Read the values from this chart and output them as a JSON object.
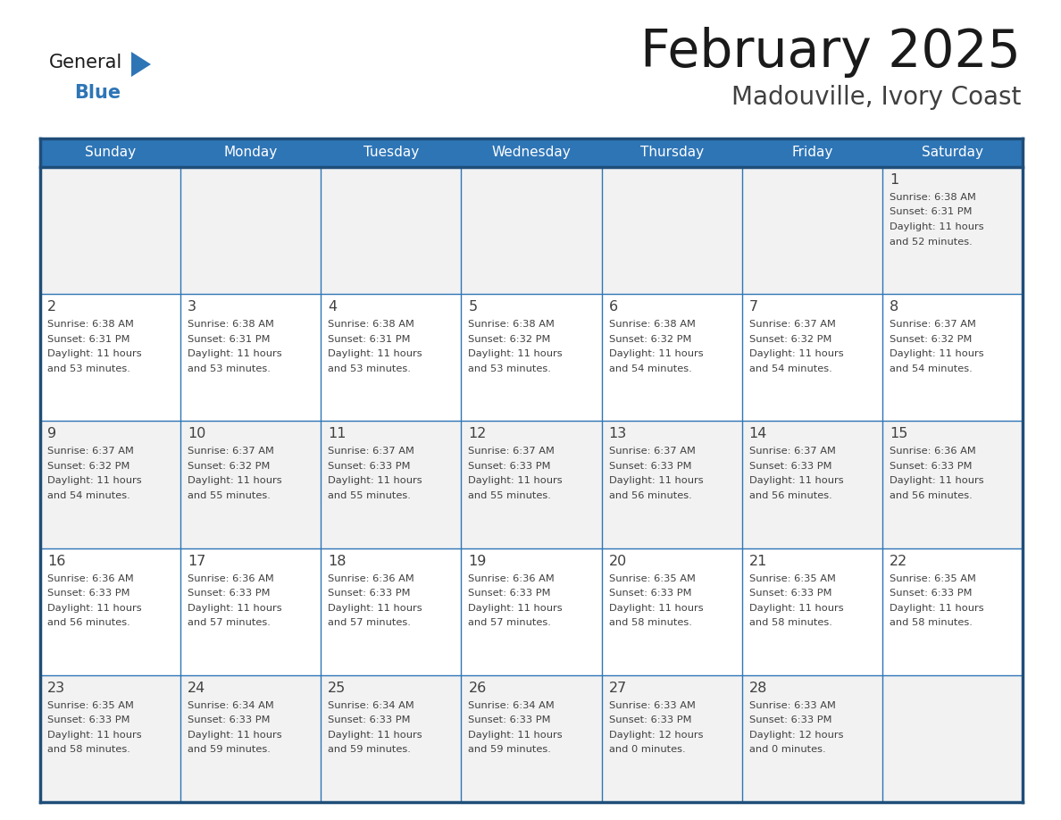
{
  "title": "February 2025",
  "subtitle": "Madouville, Ivory Coast",
  "days_of_week": [
    "Sunday",
    "Monday",
    "Tuesday",
    "Wednesday",
    "Thursday",
    "Friday",
    "Saturday"
  ],
  "header_bg": "#2E75B6",
  "header_text": "#FFFFFF",
  "cell_bg_even": "#F2F2F2",
  "cell_bg_odd": "#FFFFFF",
  "border_color": "#1F4E79",
  "inner_line_color": "#2E75B6",
  "text_color": "#404040",
  "title_color": "#1A1A1A",
  "subtitle_color": "#404040",
  "calendar": [
    [
      null,
      null,
      null,
      null,
      null,
      null,
      1
    ],
    [
      2,
      3,
      4,
      5,
      6,
      7,
      8
    ],
    [
      9,
      10,
      11,
      12,
      13,
      14,
      15
    ],
    [
      16,
      17,
      18,
      19,
      20,
      21,
      22
    ],
    [
      23,
      24,
      25,
      26,
      27,
      28,
      null
    ]
  ],
  "sun_data": {
    "1": {
      "rise": "6:38 AM",
      "set": "6:31 PM",
      "day_hours": 11,
      "day_mins": 52
    },
    "2": {
      "rise": "6:38 AM",
      "set": "6:31 PM",
      "day_hours": 11,
      "day_mins": 53
    },
    "3": {
      "rise": "6:38 AM",
      "set": "6:31 PM",
      "day_hours": 11,
      "day_mins": 53
    },
    "4": {
      "rise": "6:38 AM",
      "set": "6:31 PM",
      "day_hours": 11,
      "day_mins": 53
    },
    "5": {
      "rise": "6:38 AM",
      "set": "6:32 PM",
      "day_hours": 11,
      "day_mins": 53
    },
    "6": {
      "rise": "6:38 AM",
      "set": "6:32 PM",
      "day_hours": 11,
      "day_mins": 54
    },
    "7": {
      "rise": "6:37 AM",
      "set": "6:32 PM",
      "day_hours": 11,
      "day_mins": 54
    },
    "8": {
      "rise": "6:37 AM",
      "set": "6:32 PM",
      "day_hours": 11,
      "day_mins": 54
    },
    "9": {
      "rise": "6:37 AM",
      "set": "6:32 PM",
      "day_hours": 11,
      "day_mins": 54
    },
    "10": {
      "rise": "6:37 AM",
      "set": "6:32 PM",
      "day_hours": 11,
      "day_mins": 55
    },
    "11": {
      "rise": "6:37 AM",
      "set": "6:33 PM",
      "day_hours": 11,
      "day_mins": 55
    },
    "12": {
      "rise": "6:37 AM",
      "set": "6:33 PM",
      "day_hours": 11,
      "day_mins": 55
    },
    "13": {
      "rise": "6:37 AM",
      "set": "6:33 PM",
      "day_hours": 11,
      "day_mins": 56
    },
    "14": {
      "rise": "6:37 AM",
      "set": "6:33 PM",
      "day_hours": 11,
      "day_mins": 56
    },
    "15": {
      "rise": "6:36 AM",
      "set": "6:33 PM",
      "day_hours": 11,
      "day_mins": 56
    },
    "16": {
      "rise": "6:36 AM",
      "set": "6:33 PM",
      "day_hours": 11,
      "day_mins": 56
    },
    "17": {
      "rise": "6:36 AM",
      "set": "6:33 PM",
      "day_hours": 11,
      "day_mins": 57
    },
    "18": {
      "rise": "6:36 AM",
      "set": "6:33 PM",
      "day_hours": 11,
      "day_mins": 57
    },
    "19": {
      "rise": "6:36 AM",
      "set": "6:33 PM",
      "day_hours": 11,
      "day_mins": 57
    },
    "20": {
      "rise": "6:35 AM",
      "set": "6:33 PM",
      "day_hours": 11,
      "day_mins": 58
    },
    "21": {
      "rise": "6:35 AM",
      "set": "6:33 PM",
      "day_hours": 11,
      "day_mins": 58
    },
    "22": {
      "rise": "6:35 AM",
      "set": "6:33 PM",
      "day_hours": 11,
      "day_mins": 58
    },
    "23": {
      "rise": "6:35 AM",
      "set": "6:33 PM",
      "day_hours": 11,
      "day_mins": 58
    },
    "24": {
      "rise": "6:34 AM",
      "set": "6:33 PM",
      "day_hours": 11,
      "day_mins": 59
    },
    "25": {
      "rise": "6:34 AM",
      "set": "6:33 PM",
      "day_hours": 11,
      "day_mins": 59
    },
    "26": {
      "rise": "6:34 AM",
      "set": "6:33 PM",
      "day_hours": 11,
      "day_mins": 59
    },
    "27": {
      "rise": "6:33 AM",
      "set": "6:33 PM",
      "day_hours": 12,
      "day_mins": 0
    },
    "28": {
      "rise": "6:33 AM",
      "set": "6:33 PM",
      "day_hours": 12,
      "day_mins": 0
    }
  },
  "logo_color1": "#1A1A1A",
  "logo_color2": "#2E75B6",
  "logo_triangle_color": "#2E75B6",
  "fig_width": 11.88,
  "fig_height": 9.18,
  "dpi": 100
}
